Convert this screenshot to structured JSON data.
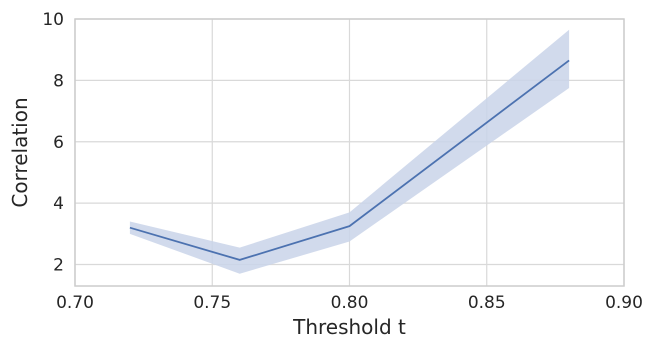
{
  "chart_data": {
    "type": "line",
    "title": "",
    "xlabel": "Threshold t",
    "ylabel": "Correlation",
    "xlim": [
      0.7,
      0.9
    ],
    "ylim": [
      1.3,
      10
    ],
    "x_ticks": [
      0.7,
      0.75,
      0.8,
      0.85,
      0.9
    ],
    "x_tick_labels": [
      "0.70",
      "0.75",
      "0.80",
      "0.85",
      "0.90"
    ],
    "y_ticks": [
      2,
      4,
      6,
      8,
      10
    ],
    "y_tick_labels": [
      "2",
      "4",
      "6",
      "8",
      "10"
    ],
    "grid": true,
    "series": [
      {
        "x": [
          0.72,
          0.76,
          0.8,
          0.88
        ],
        "y": [
          3.2,
          2.15,
          3.25,
          8.65
        ],
        "lower": [
          3.0,
          1.7,
          2.75,
          7.75
        ],
        "upper": [
          3.4,
          2.55,
          3.7,
          9.65
        ]
      }
    ],
    "colors": {
      "line": "#4c72b0",
      "band": "#c9d3e9",
      "grid": "#d9d9d9",
      "spine": "#cccccc"
    }
  }
}
